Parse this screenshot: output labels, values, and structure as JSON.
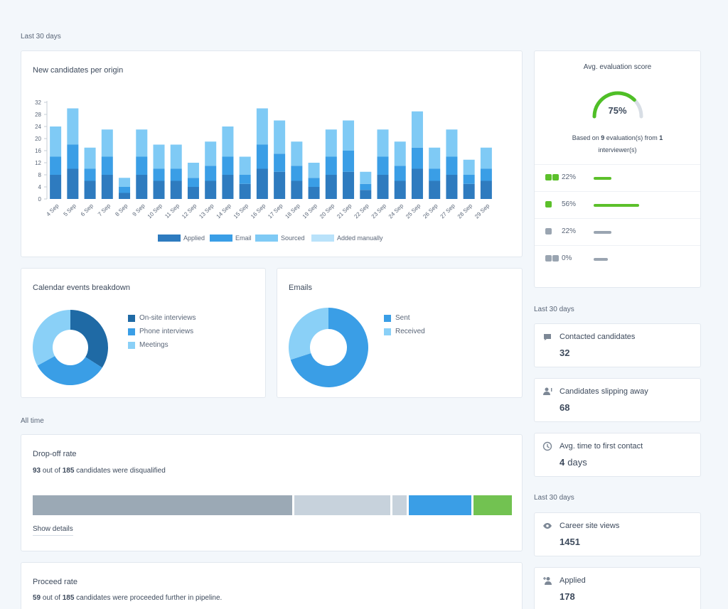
{
  "labels": {
    "last30_top": "Last 30 days",
    "last30_mid": "Last 30 days",
    "last30_low": "Last 30 days",
    "all_time": "All time"
  },
  "candidates_chart": {
    "title": "New candidates per origin",
    "chart_data": {
      "type": "bar",
      "stacked": true,
      "categories": [
        "4 Sep",
        "5 Sep",
        "6 Sep",
        "7 Sep",
        "8 Sep",
        "9 Sep",
        "10 Sep",
        "11 Sep",
        "12 Sep",
        "13 Sep",
        "14 Sep",
        "15 Sep",
        "16 Sep",
        "17 Sep",
        "18 Sep",
        "19 Sep",
        "20 Sep",
        "21 Sep",
        "22 Sep",
        "23 Sep",
        "24 Sep",
        "25 Sep",
        "26 Sep",
        "27 Sep",
        "28 Sep",
        "29 Sep"
      ],
      "yticks": [
        "0",
        "4",
        "8",
        "12",
        "16",
        "20",
        "24",
        "28",
        "32"
      ],
      "ylim": [
        0,
        32
      ],
      "series": [
        {
          "name": "Applied",
          "color": "#2e7bbf",
          "values": [
            8,
            10,
            6,
            8,
            2,
            8,
            6,
            6,
            4,
            6,
            8,
            5,
            10,
            9,
            6,
            4,
            8,
            9,
            3,
            8,
            6,
            10,
            6,
            8,
            5,
            6
          ]
        },
        {
          "name": "Email",
          "color": "#3a9ee6",
          "values": [
            6,
            8,
            4,
            6,
            2,
            6,
            4,
            4,
            3,
            5,
            6,
            3,
            8,
            6,
            5,
            3,
            6,
            7,
            2,
            6,
            5,
            7,
            4,
            6,
            3,
            4
          ]
        },
        {
          "name": "Sourced",
          "color": "#7fcaf5",
          "values": [
            10,
            12,
            7,
            9,
            3,
            9,
            8,
            8,
            5,
            8,
            10,
            6,
            12,
            11,
            8,
            5,
            9,
            10,
            4,
            9,
            8,
            12,
            7,
            9,
            5,
            7
          ]
        },
        {
          "name": "Added manually",
          "color": "#b9e2fa",
          "values": [
            0,
            0,
            0,
            0,
            0,
            0,
            0,
            0,
            0,
            0,
            0,
            0,
            0,
            0,
            0,
            0,
            0,
            0,
            0,
            0,
            0,
            0,
            0,
            0,
            0,
            0
          ]
        }
      ]
    }
  },
  "evaluation": {
    "title": "Avg. evaluation score",
    "score": "75%",
    "score_value": 0.75,
    "based_prefix": "Based on ",
    "based_count": "9",
    "based_middle": " evaluation(s) from ",
    "based_interviewers": "1",
    "based_suffix": "interviewer(s)",
    "rows": [
      {
        "icon": "double-thumbs-up-icon",
        "pct": "22%",
        "value": 0.22,
        "color": "#5cc02b"
      },
      {
        "icon": "thumbs-up-icon",
        "pct": "56%",
        "value": 0.56,
        "color": "#5cc02b"
      },
      {
        "icon": "thumbs-down-icon",
        "pct": "22%",
        "value": 0.22,
        "color": "#9aa5b1"
      },
      {
        "icon": "double-thumbs-down-icon",
        "pct": "0%",
        "value": 0.0,
        "color": "#9aa5b1"
      }
    ]
  },
  "calendar": {
    "title": "Calendar events breakdown",
    "chart_data": {
      "type": "pie",
      "donut": true,
      "slices": [
        {
          "name": "On-site interviews",
          "value": 34,
          "color": "#1f6aa5"
        },
        {
          "name": "Phone interviews",
          "value": 33,
          "color": "#3a9ee6"
        },
        {
          "name": "Meetings",
          "value": 33,
          "color": "#8ad0f7"
        }
      ]
    }
  },
  "emails": {
    "title": "Emails",
    "chart_data": {
      "type": "pie",
      "donut": true,
      "slices": [
        {
          "name": "Sent",
          "value": 70,
          "color": "#3a9ee6"
        },
        {
          "name": "Received",
          "value": 30,
          "color": "#8ad0f7"
        }
      ]
    }
  },
  "stats_top": [
    {
      "name": "contacted",
      "icon": "chat-icon",
      "title": "Contacted candidates",
      "value": "32"
    },
    {
      "name": "slipping",
      "icon": "user-alert-icon",
      "title": "Candidates slipping away",
      "value": "68"
    },
    {
      "name": "first-contact",
      "icon": "clock-icon",
      "title": "Avg. time to first contact",
      "value": "4",
      "unit": "days"
    }
  ],
  "stats_bottom": [
    {
      "name": "career-views",
      "icon": "eye-icon",
      "title": "Career site views",
      "value": "1451"
    },
    {
      "name": "applied",
      "icon": "user-add-icon",
      "title": "Applied",
      "value": "178"
    }
  ],
  "dropoff": {
    "title": "Drop-off rate",
    "count": "93",
    "out_of": " out of ",
    "total": "185",
    "suffix": " candidates were disqualified",
    "show_details": "Show details",
    "segments": [
      {
        "value": 54,
        "color": "#9ba9b5"
      },
      {
        "value": 20,
        "color": "#c7d2dc"
      },
      {
        "value": 3,
        "color": "#c7d2dc"
      },
      {
        "value": 13,
        "color": "#3a9ee6"
      },
      {
        "value": 8,
        "color": "#72c251"
      }
    ]
  },
  "proceed": {
    "title": "Proceed rate",
    "count": "59",
    "out_of": " out of ",
    "total": "185",
    "suffix": " candidates were proceeded further in pipeline."
  }
}
